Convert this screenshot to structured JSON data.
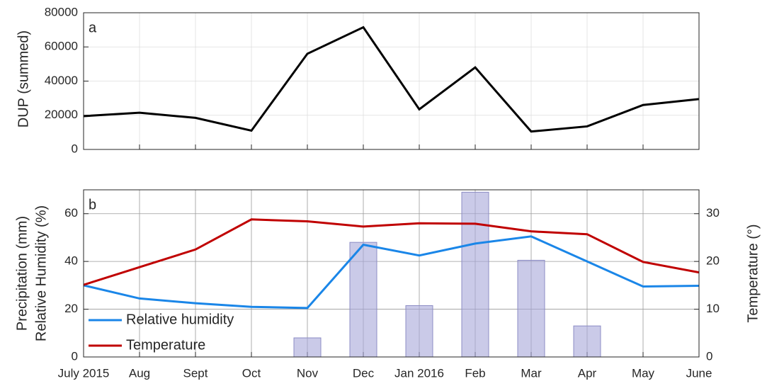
{
  "chart_data": [
    {
      "type": "line",
      "panel_label": "a",
      "ylabel": "DUP (summed)",
      "categories": [
        null,
        null,
        null,
        null,
        null,
        null,
        null,
        null,
        null,
        null,
        null,
        null
      ],
      "series": [
        {
          "color": "#000000",
          "values": [
            19500,
            21500,
            18500,
            11000,
            56000,
            71500,
            23500,
            48000,
            10500,
            13500,
            26000,
            29500
          ]
        }
      ],
      "ylim": [
        0,
        80000
      ],
      "yticks": [
        0,
        20000,
        40000,
        60000,
        80000
      ],
      "grid": true
    },
    {
      "type": "combo",
      "panel_label": "b",
      "ylabel": [
        "Precipitation (mm)",
        "Relative Humidity (%)"
      ],
      "y2label": "Temperature (°)",
      "categories": [
        "July 2015",
        "Aug",
        "Sept",
        "Oct",
        "Nov",
        "Dec",
        "Jan 2016",
        "Feb",
        "Mar",
        "Apr",
        "May",
        "June"
      ],
      "series": [
        {
          "type": "bar",
          "color": "#a6a6d8",
          "values": [
            0,
            0,
            0,
            0,
            8,
            48,
            21.5,
            69,
            40.5,
            13,
            0,
            0
          ]
        },
        {
          "type": "line",
          "name": "Relative humidity",
          "color": "#1a86e8",
          "values": [
            30,
            24.5,
            22.5,
            21,
            20.5,
            47,
            42.5,
            47.5,
            50.5,
            40,
            29.5,
            29.8
          ]
        },
        {
          "type": "line",
          "name": "Temperature",
          "color": "#c00000",
          "axis": "y2",
          "values": [
            15.1,
            18.8,
            22.5,
            28.8,
            28.4,
            27.3,
            28,
            27.9,
            26.3,
            25.7,
            19.9,
            17.7
          ]
        }
      ],
      "ylim": [
        0,
        70
      ],
      "yticks": [
        0,
        20,
        40,
        60
      ],
      "y2lim": [
        0,
        35
      ],
      "y2ticks": [
        0,
        10,
        20,
        30
      ],
      "grid": true,
      "legend": "lower left"
    }
  ]
}
